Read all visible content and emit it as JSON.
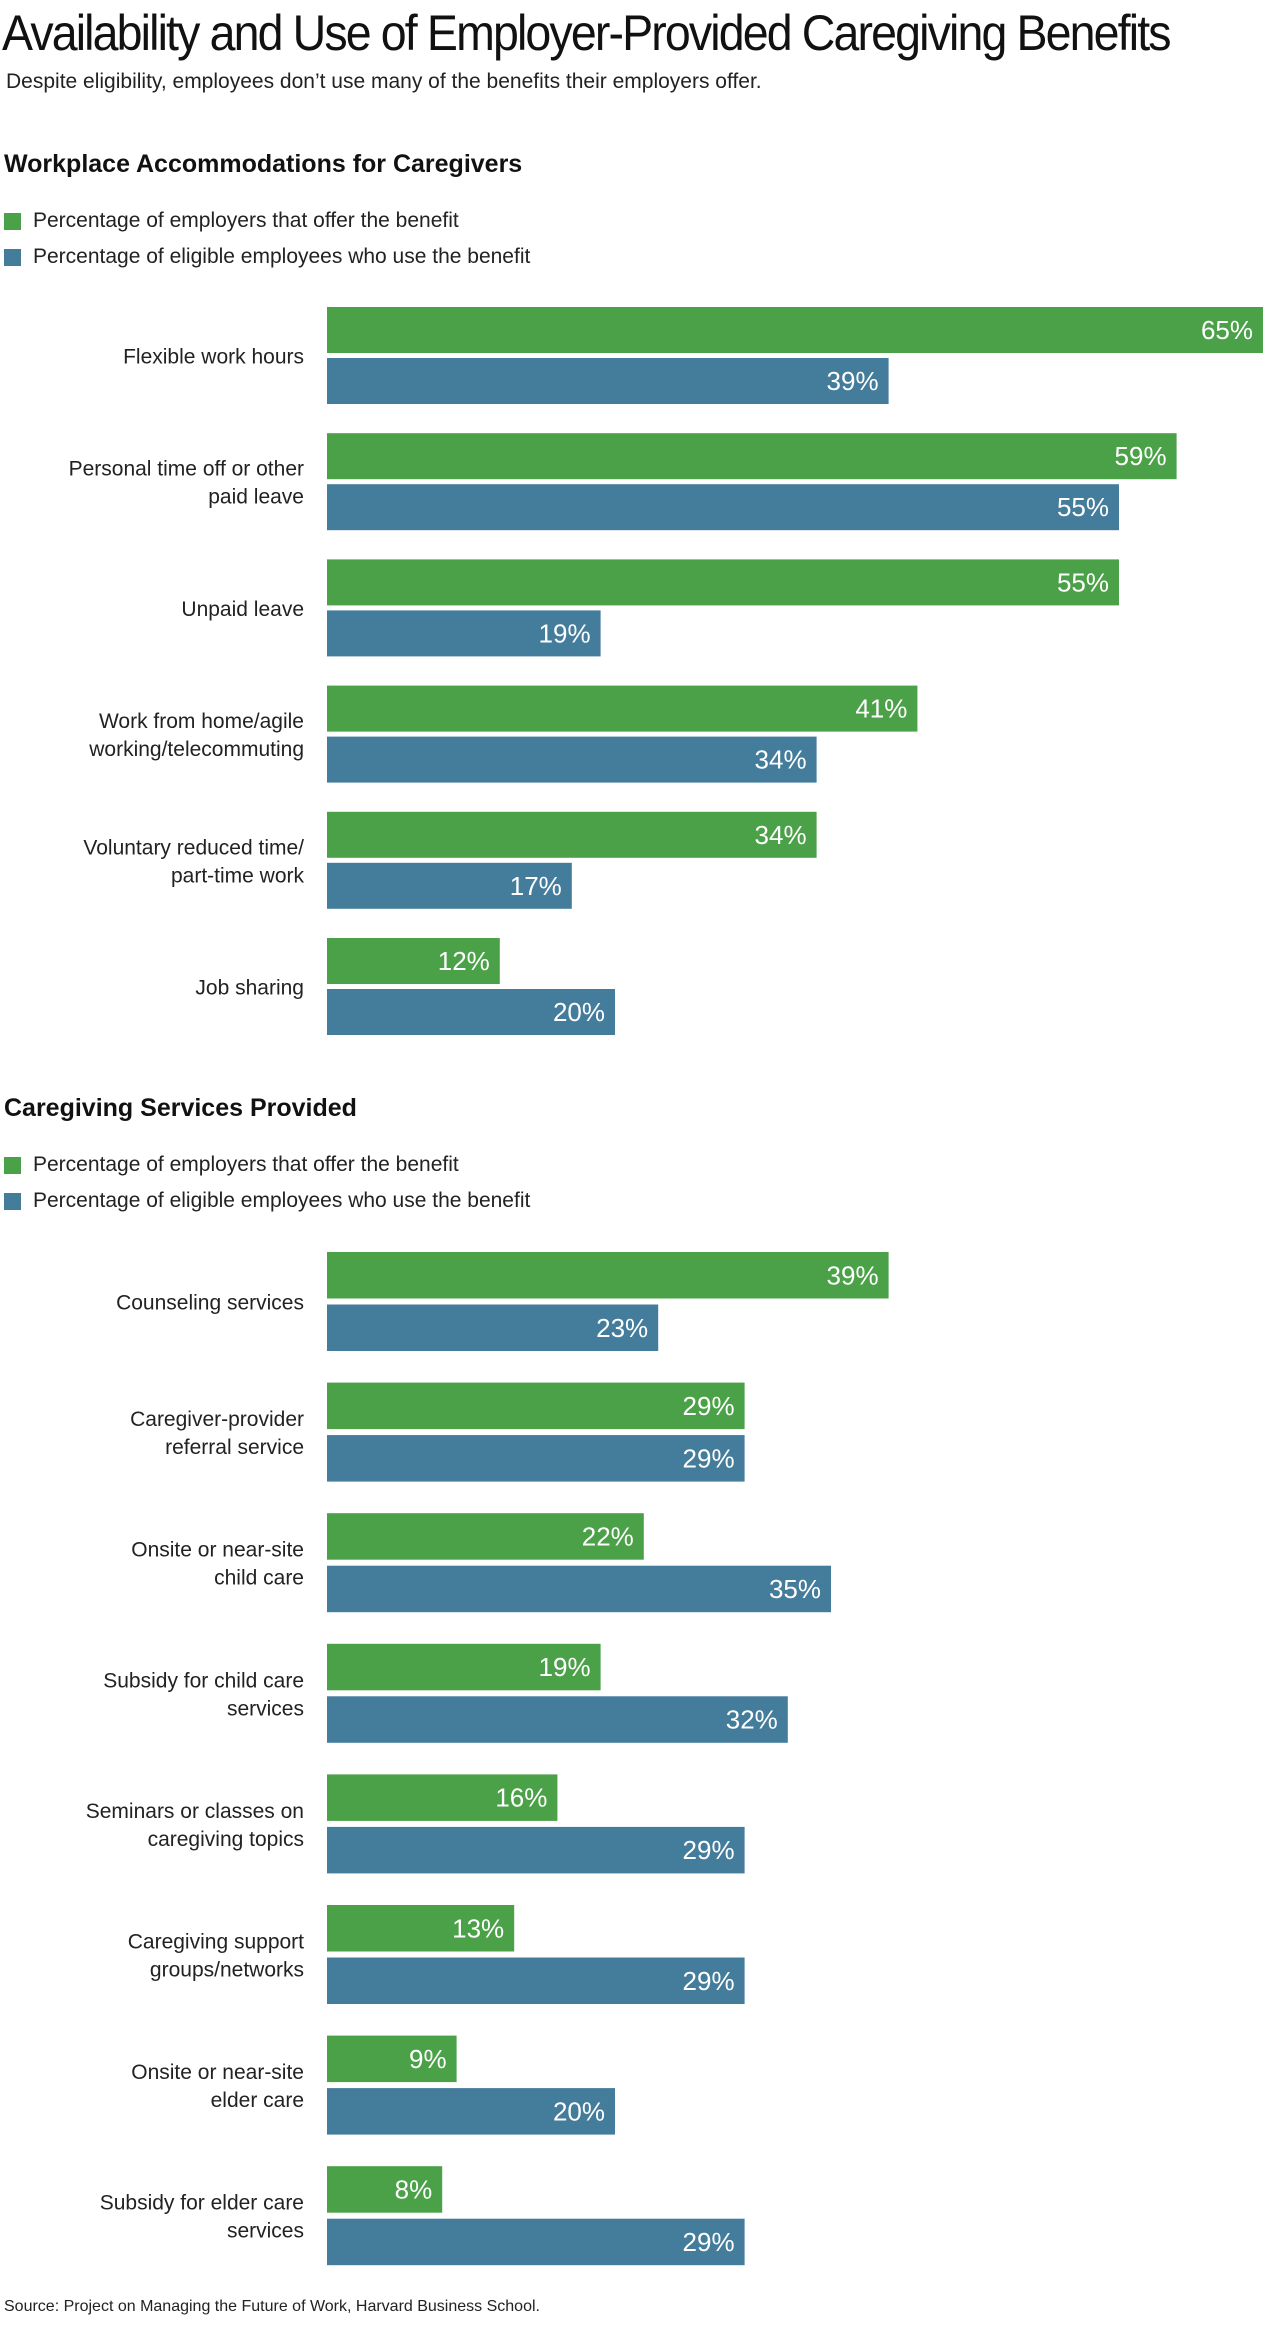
{
  "title": "Availability and Use of Employer-Provided Caregiving Benefits",
  "subtitle": "Despite eligibility, employees don’t use many of the benefits their employers offer.",
  "colors": {
    "offer": "#4ba147",
    "use": "#447c9c"
  },
  "source": "Source: Project on Managing the Future of Work, Harvard Business School.",
  "chart_data": [
    {
      "type": "bar",
      "orientation": "horizontal",
      "title": "Workplace Accommodations for Caregivers",
      "legend": "top-left",
      "categories": [
        [
          "Flexible work hours"
        ],
        [
          "Personal time off or other",
          "paid leave"
        ],
        [
          "Unpaid leave"
        ],
        [
          "Work from home/agile",
          "working/telecommuting"
        ],
        [
          "Voluntary reduced time/",
          "part-time work"
        ],
        [
          "Job sharing"
        ]
      ],
      "series": [
        {
          "name": "Percentage of employers that offer the benefit",
          "values": [
            65,
            59,
            55,
            41,
            34,
            12
          ]
        },
        {
          "name": "Percentage of eligible employees who use the benefit",
          "values": [
            39,
            55,
            19,
            34,
            17,
            20
          ]
        }
      ],
      "value_suffix": "%",
      "xlim": [
        0,
        65
      ]
    },
    {
      "type": "bar",
      "orientation": "horizontal",
      "title": "Caregiving Services Provided",
      "legend": "top-left",
      "categories": [
        [
          "Counseling services"
        ],
        [
          "Caregiver-provider",
          "referral service"
        ],
        [
          "Onsite or near-site",
          "child care"
        ],
        [
          "Subsidy for child care",
          "services"
        ],
        [
          "Seminars or classes on",
          "caregiving topics"
        ],
        [
          "Caregiving support",
          "groups/networks"
        ],
        [
          "Onsite or near-site",
          "elder care"
        ],
        [
          "Subsidy for elder care",
          "services"
        ]
      ],
      "series": [
        {
          "name": "Percentage of employers that offer the benefit",
          "values": [
            39,
            29,
            22,
            19,
            16,
            13,
            9,
            8
          ]
        },
        {
          "name": "Percentage of eligible employees who use the benefit",
          "values": [
            23,
            29,
            35,
            32,
            29,
            29,
            20,
            29
          ]
        }
      ],
      "value_suffix": "%",
      "xlim": [
        0,
        65
      ]
    }
  ]
}
